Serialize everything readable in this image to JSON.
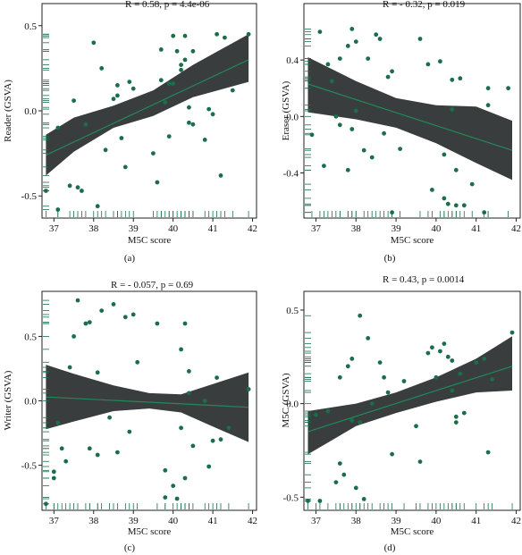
{
  "colors": {
    "point": "#1a6e4a",
    "band": "#3a3d3d",
    "fit_line": "#1f8a5a",
    "rug": "#1a6e4a",
    "axis": "#222222"
  },
  "chart_data": [
    {
      "panel": "(a)",
      "type": "scatter",
      "stat_label": "R = 0.58, p = 4.4e-06",
      "xlabel": "M5C score",
      "ylabel": "Reader (GSVA)",
      "xlim": [
        36.7,
        42.1
      ],
      "ylim": [
        -0.63,
        0.63
      ],
      "xticks": [
        37,
        38,
        39,
        40,
        41,
        42
      ],
      "yticks": [
        -0.5,
        0.0,
        0.5
      ],
      "ytick_labels": [
        "-0.5",
        "0.0",
        "0.5"
      ],
      "fit": {
        "x0": 36.8,
        "y0": -0.26,
        "x1": 41.9,
        "y1": 0.3
      },
      "band": {
        "upper": [
          [
            36.8,
            -0.14
          ],
          [
            37.5,
            -0.04
          ],
          [
            38.5,
            0.03
          ],
          [
            39.5,
            0.12
          ],
          [
            40.5,
            0.27
          ],
          [
            41.9,
            0.45
          ]
        ],
        "lower": [
          [
            36.8,
            -0.38
          ],
          [
            37.5,
            -0.24
          ],
          [
            38.5,
            -0.1
          ],
          [
            39.5,
            -0.03
          ],
          [
            40.5,
            0.08
          ],
          [
            41.9,
            0.17
          ]
        ]
      },
      "points": [
        [
          36.8,
          -0.47
        ],
        [
          37.1,
          -0.1
        ],
        [
          37.1,
          -0.58
        ],
        [
          37.4,
          -0.44
        ],
        [
          37.5,
          0.06
        ],
        [
          37.6,
          -0.45
        ],
        [
          37.7,
          -0.47
        ],
        [
          37.8,
          -0.08
        ],
        [
          38.0,
          0.4
        ],
        [
          38.1,
          -0.56
        ],
        [
          38.2,
          0.25
        ],
        [
          38.3,
          -0.23
        ],
        [
          38.5,
          0.07
        ],
        [
          38.6,
          0.09
        ],
        [
          38.6,
          0.15
        ],
        [
          38.7,
          -0.16
        ],
        [
          38.8,
          -0.33
        ],
        [
          38.9,
          0.17
        ],
        [
          39.0,
          0.13
        ],
        [
          39.5,
          -0.25
        ],
        [
          39.6,
          -0.42
        ],
        [
          39.7,
          0.36
        ],
        [
          39.7,
          0.18
        ],
        [
          39.8,
          0.05
        ],
        [
          39.9,
          0.16
        ],
        [
          39.9,
          -0.15
        ],
        [
          40.0,
          0.44
        ],
        [
          40.0,
          0.16
        ],
        [
          40.1,
          0.35
        ],
        [
          40.2,
          0.24
        ],
        [
          40.2,
          0.27
        ],
        [
          40.3,
          0.44
        ],
        [
          40.3,
          0.3
        ],
        [
          40.4,
          -0.07
        ],
        [
          40.4,
          0.02
        ],
        [
          40.5,
          -0.08
        ],
        [
          40.5,
          0.35
        ],
        [
          40.8,
          -0.17
        ],
        [
          40.9,
          0.01
        ],
        [
          41.0,
          -0.02
        ],
        [
          41.1,
          0.45
        ],
        [
          41.2,
          -0.38
        ],
        [
          41.3,
          0.43
        ],
        [
          41.5,
          0.12
        ],
        [
          41.9,
          0.45
        ]
      ]
    },
    {
      "panel": "(b)",
      "type": "scatter",
      "stat_label": "R = - 0.32, p = 0.019",
      "xlabel": "M5C score",
      "ylabel": "Eraser (GSVA)",
      "xlim": [
        36.7,
        42.1
      ],
      "ylim": [
        -0.72,
        0.8
      ],
      "xticks": [
        37,
        38,
        39,
        40,
        41,
        42
      ],
      "yticks": [
        -0.4,
        0.0,
        0.4
      ],
      "ytick_labels": [
        "-0.4",
        "0.0",
        "0.4"
      ],
      "fit": {
        "x0": 36.8,
        "y0": 0.23,
        "x1": 41.9,
        "y1": -0.24
      },
      "band": {
        "upper": [
          [
            36.8,
            0.42
          ],
          [
            38.0,
            0.25
          ],
          [
            39.0,
            0.13
          ],
          [
            40.0,
            0.08
          ],
          [
            41.0,
            0.07
          ],
          [
            41.9,
            -0.03
          ]
        ],
        "lower": [
          [
            36.8,
            0.03
          ],
          [
            38.0,
            -0.02
          ],
          [
            39.0,
            -0.08
          ],
          [
            40.0,
            -0.19
          ],
          [
            41.0,
            -0.33
          ],
          [
            41.9,
            -0.45
          ]
        ]
      },
      "points": [
        [
          36.9,
          -0.13
        ],
        [
          37.1,
          0.6
        ],
        [
          37.2,
          -0.35
        ],
        [
          37.3,
          0.37
        ],
        [
          37.4,
          0.25
        ],
        [
          37.5,
          0.0
        ],
        [
          37.6,
          0.41
        ],
        [
          37.6,
          -0.06
        ],
        [
          37.8,
          0.5
        ],
        [
          37.8,
          -0.38
        ],
        [
          37.9,
          0.62
        ],
        [
          37.9,
          -0.09
        ],
        [
          38.0,
          0.53
        ],
        [
          38.0,
          0.04
        ],
        [
          38.2,
          -0.24
        ],
        [
          38.3,
          0.41
        ],
        [
          38.4,
          -0.29
        ],
        [
          38.5,
          0.58
        ],
        [
          38.6,
          0.55
        ],
        [
          38.7,
          -0.12
        ],
        [
          38.8,
          0.28
        ],
        [
          38.9,
          0.32
        ],
        [
          38.9,
          -0.68
        ],
        [
          39.1,
          -0.23
        ],
        [
          39.6,
          0.55
        ],
        [
          39.8,
          0.37
        ],
        [
          39.9,
          -0.52
        ],
        [
          40.1,
          0.39
        ],
        [
          40.2,
          -0.58
        ],
        [
          40.2,
          -0.27
        ],
        [
          40.3,
          -0.62
        ],
        [
          40.4,
          0.26
        ],
        [
          40.4,
          0.05
        ],
        [
          40.5,
          -0.38
        ],
        [
          40.5,
          -0.63
        ],
        [
          40.6,
          0.27
        ],
        [
          40.7,
          -0.63
        ],
        [
          40.9,
          -0.48
        ],
        [
          41.2,
          -0.68
        ],
        [
          41.3,
          0.2
        ],
        [
          41.3,
          0.08
        ],
        [
          41.8,
          0.2
        ]
      ]
    },
    {
      "panel": "(c)",
      "type": "scatter",
      "stat_label": "R = - 0.057, p = 0.69",
      "xlabel": "M5C score",
      "ylabel": "Writer (GSVA)",
      "xlim": [
        36.7,
        42.1
      ],
      "ylim": [
        -0.85,
        0.85
      ],
      "xticks": [
        37,
        38,
        39,
        40,
        41,
        42
      ],
      "yticks": [
        -0.5,
        0.0,
        0.5
      ],
      "ytick_labels": [
        "-0.5",
        "0.0",
        "0.5"
      ],
      "fit": {
        "x0": 36.8,
        "y0": 0.03,
        "x1": 41.9,
        "y1": -0.05
      },
      "band": {
        "upper": [
          [
            36.8,
            0.28
          ],
          [
            37.5,
            0.21
          ],
          [
            38.5,
            0.12
          ],
          [
            39.4,
            0.06
          ],
          [
            40.2,
            0.05
          ],
          [
            41.0,
            0.13
          ],
          [
            41.9,
            0.22
          ]
        ],
        "lower": [
          [
            36.8,
            -0.22
          ],
          [
            37.5,
            -0.16
          ],
          [
            38.5,
            -0.08
          ],
          [
            39.4,
            -0.06
          ],
          [
            40.2,
            -0.09
          ],
          [
            41.0,
            -0.2
          ],
          [
            41.9,
            -0.32
          ]
        ]
      },
      "points": [
        [
          36.8,
          -0.8
        ],
        [
          37.0,
          -0.6
        ],
        [
          37.0,
          -0.55
        ],
        [
          37.1,
          -0.17
        ],
        [
          37.2,
          -0.37
        ],
        [
          37.3,
          -0.47
        ],
        [
          37.4,
          0.26
        ],
        [
          37.5,
          0.5
        ],
        [
          37.6,
          0.78
        ],
        [
          37.8,
          0.6
        ],
        [
          37.9,
          -0.37
        ],
        [
          37.9,
          0.61
        ],
        [
          38.1,
          0.22
        ],
        [
          38.1,
          -0.42
        ],
        [
          38.2,
          0.7
        ],
        [
          38.4,
          -0.13
        ],
        [
          38.5,
          0.75
        ],
        [
          38.6,
          -0.4
        ],
        [
          38.8,
          0.65
        ],
        [
          38.9,
          -0.24
        ],
        [
          39.0,
          0.67
        ],
        [
          39.1,
          0.3
        ],
        [
          39.6,
          0.6
        ],
        [
          39.8,
          -0.54
        ],
        [
          39.8,
          -0.75
        ],
        [
          40.0,
          -0.66
        ],
        [
          40.1,
          -0.76
        ],
        [
          40.2,
          -0.21
        ],
        [
          40.2,
          0.4
        ],
        [
          40.3,
          -0.6
        ],
        [
          40.3,
          0.6
        ],
        [
          40.4,
          0.23
        ],
        [
          40.4,
          0.06
        ],
        [
          40.5,
          -0.35
        ],
        [
          40.8,
          0.0
        ],
        [
          40.9,
          -0.51
        ],
        [
          41.0,
          -0.31
        ],
        [
          41.1,
          0.18
        ],
        [
          41.2,
          -0.3
        ],
        [
          41.4,
          -0.21
        ],
        [
          41.9,
          0.09
        ]
      ]
    },
    {
      "panel": "(d)",
      "type": "scatter",
      "stat_label": "R = 0.43, p = 0.0014",
      "xlabel": "M5C score",
      "ylabel": "M5C (GSVA)",
      "xlim": [
        36.7,
        42.1
      ],
      "ylim": [
        -0.57,
        0.6
      ],
      "xticks": [
        37,
        38,
        39,
        40,
        41,
        42
      ],
      "yticks": [
        -0.5,
        0.0,
        0.5
      ],
      "ytick_labels": [
        "-0.5",
        "0.0",
        "0.5"
      ],
      "fit": {
        "x0": 36.8,
        "y0": -0.15,
        "x1": 41.9,
        "y1": 0.2
      },
      "band": {
        "upper": [
          [
            36.8,
            -0.04
          ],
          [
            38.0,
            0.0
          ],
          [
            39.0,
            0.06
          ],
          [
            40.0,
            0.14
          ],
          [
            41.0,
            0.24
          ],
          [
            41.9,
            0.36
          ]
        ],
        "lower": [
          [
            36.8,
            -0.27
          ],
          [
            38.0,
            -0.12
          ],
          [
            39.0,
            -0.05
          ],
          [
            40.0,
            0.01
          ],
          [
            41.0,
            0.06
          ],
          [
            41.9,
            0.07
          ]
        ]
      },
      "points": [
        [
          36.8,
          -0.52
        ],
        [
          37.0,
          -0.06
        ],
        [
          37.1,
          -0.52
        ],
        [
          37.3,
          -0.04
        ],
        [
          37.5,
          -0.42
        ],
        [
          37.6,
          0.14
        ],
        [
          37.6,
          -0.32
        ],
        [
          37.7,
          -0.38
        ],
        [
          37.8,
          0.2
        ],
        [
          37.9,
          -0.09
        ],
        [
          37.9,
          0.24
        ],
        [
          38.0,
          -0.45
        ],
        [
          38.1,
          -0.1
        ],
        [
          38.1,
          0.47
        ],
        [
          38.2,
          -0.51
        ],
        [
          38.3,
          0.35
        ],
        [
          38.4,
          0.0
        ],
        [
          38.6,
          0.22
        ],
        [
          38.7,
          0.14
        ],
        [
          38.8,
          0.06
        ],
        [
          38.9,
          -0.27
        ],
        [
          39.2,
          0.12
        ],
        [
          39.5,
          -0.12
        ],
        [
          39.6,
          -0.31
        ],
        [
          39.8,
          0.27
        ],
        [
          39.9,
          0.3
        ],
        [
          40.0,
          0.14
        ],
        [
          40.1,
          0.28
        ],
        [
          40.2,
          0.32
        ],
        [
          40.3,
          0.25
        ],
        [
          40.4,
          0.23
        ],
        [
          40.4,
          0.07
        ],
        [
          40.5,
          -0.07
        ],
        [
          40.5,
          -0.1
        ],
        [
          40.6,
          0.16
        ],
        [
          40.7,
          -0.05
        ],
        [
          41.0,
          0.22
        ],
        [
          41.2,
          0.24
        ],
        [
          41.3,
          -0.26
        ],
        [
          41.4,
          0.13
        ],
        [
          41.9,
          0.38
        ]
      ]
    }
  ]
}
